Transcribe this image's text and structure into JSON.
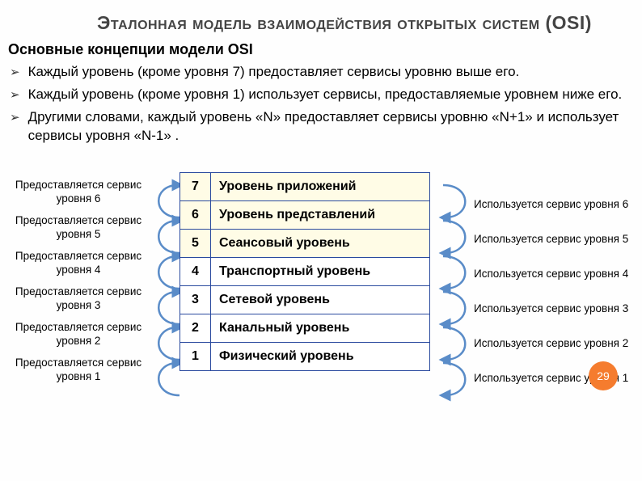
{
  "title": "Эталонная модель взаимодействия открытых систем (OSI)",
  "subtitle": "Основные концепции модели OSI",
  "bullets": [
    "Каждый уровень (кроме уровня 7) предоставляет сервисы уровню выше его.",
    "Каждый уровень (кроме уровня 1) использует сервисы, предоставляемые уровнем ниже его.",
    "Другими словами, каждый уровень «N» предоставляет сервисы уровню «N+1» и использует сервисы уровня «N-1» ."
  ],
  "layers": [
    {
      "num": "7",
      "name": "Уровень приложений",
      "highlight": true
    },
    {
      "num": "6",
      "name": "Уровень представлений",
      "highlight": true
    },
    {
      "num": "5",
      "name": "Сеансовый уровень",
      "highlight": true
    },
    {
      "num": "4",
      "name": "Транспортный уровень",
      "highlight": false
    },
    {
      "num": "3",
      "name": "Сетевой уровень",
      "highlight": false
    },
    {
      "num": "2",
      "name": "Канальный уровень",
      "highlight": false
    },
    {
      "num": "1",
      "name": "Физический уровень",
      "highlight": false
    }
  ],
  "left_labels": [
    "Предоставляется сервис уровня 6",
    "Предоставляется сервис уровня 5",
    "Предоставляется сервис уровня 4",
    "Предоставляется сервис уровня 3",
    "Предоставляется сервис уровня 2",
    "Предоставляется сервис уровня 1"
  ],
  "right_labels": [
    "Используется сервис уровня 6",
    "Используется сервис уровня 5",
    "Используется сервис уровня 4",
    "Используется сервис уровня 3",
    "Используется сервис уровня 2",
    "Используется сервис уровня 1"
  ],
  "slide_number": "29",
  "colors": {
    "border": "#2a4a9e",
    "highlight_bg": "#fffce6",
    "arrow": "#5a8cc8",
    "badge": "#f57c2e"
  }
}
